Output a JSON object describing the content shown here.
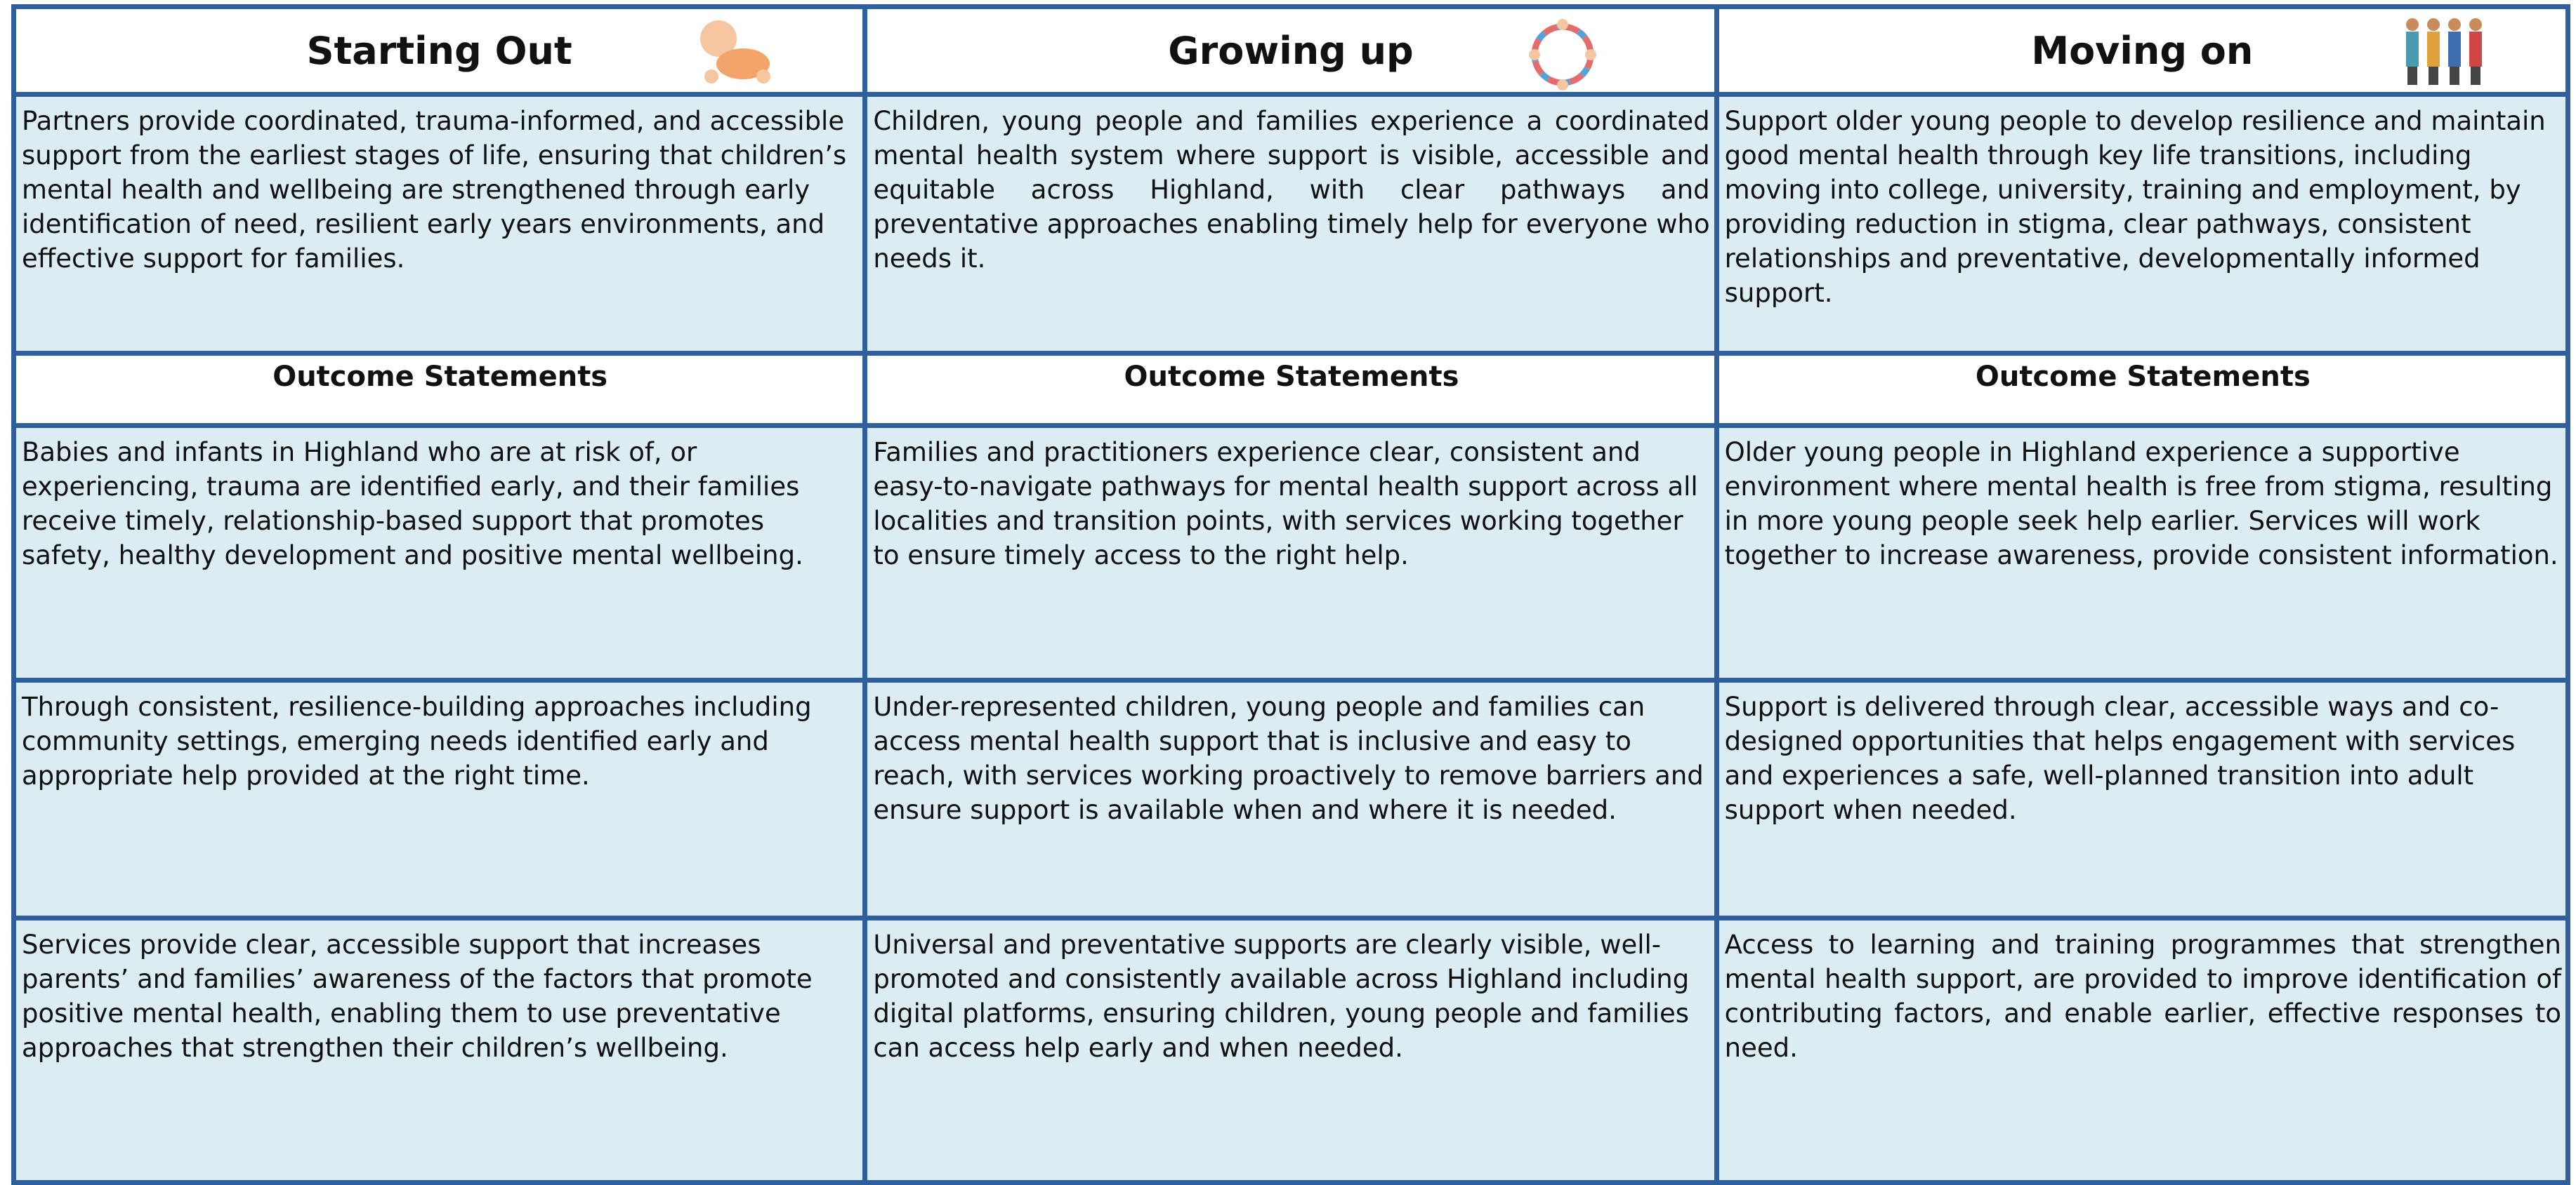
{
  "columns": [
    {
      "title": "Starting Out",
      "intro": "Partners provide coordinated, trauma-informed, and accessible support from the earliest stages of life, ensuring that children’s mental health and wellbeing are strengthened through early identification of need, resilient early years environments, and effective support for families.",
      "outcomes_heading": "Outcome Statements",
      "outcomes": [
        "Babies and infants in Highland who are at risk of, or experiencing, trauma are identified early, and their families receive timely, relationship-based support that promotes safety, healthy development and positive mental wellbeing.",
        "Through consistent, resilience-building approaches including community settings, emerging needs identified early and appropriate help provided at the right time.",
        "Services provide clear, accessible support that increases parents’ and families’ awareness of the factors that promote positive mental health, enabling them to use preventative approaches that strengthen their children’s wellbeing."
      ]
    },
    {
      "title": "Growing up",
      "intro": "Children, young people and families experience a coordinated mental health system where support is visible, accessible and equitable across Highland, with clear pathways and preventative approaches enabling timely help for everyone who needs it.",
      "outcomes_heading": "Outcome Statements",
      "outcomes": [
        "Families and practitioners experience clear, consistent and easy-to-navigate pathways for mental health support across all localities and transition points, with services working together to ensure timely access to the right help.",
        "Under-represented children, young people and families can access mental health support that is inclusive and easy to reach, with services working proactively to remove barriers and ensure support is available when and where it is needed.",
        "Universal and preventative supports are clearly visible, well-promoted and consistently available across Highland including digital platforms, ensuring children, young people and families can access help early and when needed."
      ]
    },
    {
      "title": "Moving on",
      "intro": "Support older young people to develop resilience and maintain good mental health through key life transitions, including moving into college, university, training and employment, by providing reduction in stigma, clear pathways, consistent relationships and preventative, developmentally informed support.",
      "outcomes_heading": "Outcome Statements",
      "outcomes": [
        "Older young people in Highland experience a supportive environment where mental health is free from stigma, resulting in more young people seek help earlier. Services will work together to increase awareness, provide consistent information.",
        "Support is delivered through clear, accessible ways and co-designed opportunities that helps engagement with services and experiences a safe, well-planned transition into adult support when needed.",
        "Access to learning and training programmes that strengthen mental health support, are provided to improve identification of contributing factors, and enable earlier, effective responses to need."
      ]
    }
  ]
}
